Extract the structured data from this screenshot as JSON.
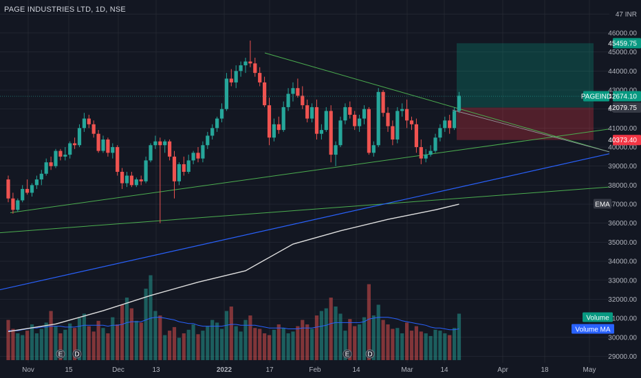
{
  "header": {
    "title": "PAGE INDUSTRIES LTD, 1D, NSE",
    "currency": "INR"
  },
  "colors": {
    "background": "#131722",
    "up": "#26a69a",
    "down": "#ef5350",
    "grid": "#2a2e39",
    "text": "#b2b5be",
    "ema": "#e0e0e0",
    "trend_blue": "#2962ff",
    "trend_green": "#4caf50"
  },
  "chart_data": {
    "type": "candlestick",
    "title": "PAGE INDUSTRIES LTD, 1D, NSE",
    "y_axis": {
      "unit": "INR",
      "ticks": [
        29000,
        30000,
        31000,
        32000,
        33000,
        34000,
        35000,
        36000,
        37000,
        38000,
        39000,
        40000,
        41000,
        42000,
        43000,
        44000,
        45000,
        46000,
        47000
      ],
      "ylim": [
        28800,
        47300
      ]
    },
    "x_axis": {
      "ticks": [
        "Nov",
        "15",
        "Dec",
        "13",
        "2022",
        "17",
        "Feb",
        "14",
        "Mar",
        "14",
        "Apr",
        "18",
        "May"
      ]
    },
    "series": [
      {
        "kind": "candles",
        "name": "PAGEIND",
        "ohlc": [
          [
            38300,
            38500,
            37100,
            37300
          ],
          [
            37300,
            37600,
            36500,
            36700
          ],
          [
            36700,
            37300,
            36600,
            37200
          ],
          [
            37200,
            38000,
            37100,
            37800
          ],
          [
            37800,
            38300,
            37500,
            37600
          ],
          [
            37600,
            38100,
            37400,
            38000
          ],
          [
            38000,
            38500,
            37800,
            38300
          ],
          [
            38300,
            38800,
            38000,
            38600
          ],
          [
            38600,
            39400,
            38500,
            39200
          ],
          [
            39200,
            39500,
            38800,
            39000
          ],
          [
            39000,
            39900,
            38900,
            39800
          ],
          [
            39800,
            39900,
            39300,
            39500
          ],
          [
            39500,
            40000,
            39300,
            39600
          ],
          [
            39600,
            40300,
            39400,
            40200
          ],
          [
            40200,
            40500,
            39900,
            40100
          ],
          [
            40100,
            41200,
            40000,
            41000
          ],
          [
            41000,
            41800,
            40800,
            41500
          ],
          [
            41500,
            41700,
            41000,
            41200
          ],
          [
            41200,
            41400,
            40500,
            40700
          ],
          [
            40700,
            40900,
            39700,
            39800
          ],
          [
            39800,
            40600,
            39700,
            40400
          ],
          [
            40400,
            40500,
            39500,
            39700
          ],
          [
            39700,
            40200,
            39400,
            40000
          ],
          [
            40000,
            40100,
            38500,
            38700
          ],
          [
            38700,
            38900,
            37800,
            38100
          ],
          [
            38100,
            38700,
            37900,
            38500
          ],
          [
            38500,
            38700,
            37900,
            38000
          ],
          [
            38000,
            38400,
            37900,
            38300
          ],
          [
            38300,
            38500,
            38000,
            38200
          ],
          [
            38200,
            39500,
            38100,
            39300
          ],
          [
            39300,
            40200,
            39200,
            40100
          ],
          [
            40100,
            40600,
            39900,
            40300
          ],
          [
            40300,
            40500,
            36000,
            40100
          ],
          [
            40100,
            40400,
            39700,
            40300
          ],
          [
            40300,
            40400,
            39300,
            39500
          ],
          [
            39500,
            39800,
            37300,
            38200
          ],
          [
            38200,
            39200,
            38000,
            39100
          ],
          [
            39100,
            39500,
            38500,
            38700
          ],
          [
            38700,
            39600,
            38600,
            39300
          ],
          [
            39300,
            39800,
            39100,
            39700
          ],
          [
            39700,
            40000,
            39200,
            39400
          ],
          [
            39400,
            40300,
            39200,
            40100
          ],
          [
            40100,
            40800,
            39900,
            40600
          ],
          [
            40600,
            41200,
            40400,
            41000
          ],
          [
            41000,
            41600,
            40800,
            41500
          ],
          [
            41500,
            42300,
            41300,
            42000
          ],
          [
            42000,
            43900,
            41900,
            43600
          ],
          [
            43600,
            44100,
            43200,
            43400
          ],
          [
            43400,
            44300,
            43100,
            44000
          ],
          [
            44000,
            44500,
            43700,
            44300
          ],
          [
            44300,
            44700,
            43900,
            44500
          ],
          [
            44500,
            45600,
            44200,
            44400
          ],
          [
            44400,
            44700,
            43700,
            43900
          ],
          [
            43900,
            44200,
            43200,
            43400
          ],
          [
            43400,
            43700,
            42100,
            42200
          ],
          [
            42200,
            42600,
            40100,
            40500
          ],
          [
            40500,
            41500,
            40300,
            41200
          ],
          [
            41200,
            41600,
            40700,
            40900
          ],
          [
            40900,
            42400,
            40800,
            42100
          ],
          [
            42100,
            43100,
            41900,
            42800
          ],
          [
            42800,
            43400,
            42400,
            43100
          ],
          [
            43100,
            43600,
            42600,
            42700
          ],
          [
            42700,
            43200,
            42000,
            42200
          ],
          [
            42200,
            42500,
            41300,
            41500
          ],
          [
            41500,
            42300,
            41300,
            42100
          ],
          [
            42100,
            42500,
            40400,
            40700
          ],
          [
            40700,
            41200,
            40400,
            40900
          ],
          [
            40900,
            42100,
            40800,
            41900
          ],
          [
            41900,
            42200,
            39200,
            39600
          ],
          [
            39600,
            40300,
            39000,
            40100
          ],
          [
            40100,
            41600,
            40000,
            41400
          ],
          [
            41400,
            42300,
            41200,
            42100
          ],
          [
            42100,
            42400,
            41500,
            41700
          ],
          [
            41700,
            41900,
            40900,
            41100
          ],
          [
            41100,
            41700,
            40800,
            41500
          ],
          [
            41500,
            42200,
            41200,
            42000
          ],
          [
            42000,
            42100,
            39600,
            39700
          ],
          [
            39700,
            40300,
            39500,
            40100
          ],
          [
            40100,
            43100,
            40000,
            42900
          ],
          [
            42900,
            43000,
            41600,
            41800
          ],
          [
            41800,
            42100,
            40800,
            41100
          ],
          [
            41100,
            41400,
            40100,
            40400
          ],
          [
            40400,
            42100,
            40200,
            41900
          ],
          [
            41900,
            42300,
            41600,
            42000
          ],
          [
            42000,
            42500,
            41000,
            41400
          ],
          [
            41400,
            41600,
            40900,
            41200
          ],
          [
            41200,
            41500,
            39700,
            40000
          ],
          [
            40000,
            40400,
            39100,
            39400
          ],
          [
            39400,
            39900,
            39200,
            39600
          ],
          [
            39600,
            40100,
            39500,
            39800
          ],
          [
            39800,
            40700,
            39700,
            40500
          ],
          [
            40500,
            41200,
            40300,
            41000
          ],
          [
            41000,
            41600,
            40800,
            41400
          ],
          [
            41400,
            41700,
            40700,
            41000
          ],
          [
            41000,
            42100,
            40900,
            41900
          ],
          [
            41900,
            42900,
            41800,
            42700
          ]
        ]
      },
      {
        "kind": "line",
        "name": "EMA",
        "points": [
          [
            0,
            30300
          ],
          [
            10,
            30700
          ],
          [
            20,
            31400
          ],
          [
            30,
            32200
          ],
          [
            40,
            32900
          ],
          [
            50,
            33500
          ],
          [
            55,
            34200
          ],
          [
            60,
            34900
          ],
          [
            70,
            35600
          ],
          [
            80,
            36200
          ],
          [
            90,
            36700
          ],
          [
            95,
            37000
          ]
        ]
      },
      {
        "kind": "bars",
        "name": "Volume"
      },
      {
        "kind": "line",
        "name": "Volume MA"
      }
    ],
    "price_tags": [
      {
        "value": "45459.75",
        "color": "#089981"
      },
      {
        "value": "42674.10",
        "color": "#089981",
        "label": "PAGEIND"
      },
      {
        "value": "42079.75",
        "color": "#363a45"
      },
      {
        "value": "40373.40",
        "color": "#f23645"
      }
    ],
    "legend": [
      {
        "label": "EMA",
        "color": "#363a45"
      },
      {
        "label": "Volume",
        "color": "#089981"
      },
      {
        "label": "Volume MA",
        "color": "#2962ff"
      }
    ],
    "volume_values": [
      0.45,
      0.35,
      0.3,
      0.28,
      0.33,
      0.4,
      0.3,
      0.35,
      0.42,
      0.55,
      0.38,
      0.3,
      0.34,
      0.41,
      0.36,
      0.47,
      0.52,
      0.38,
      0.32,
      0.44,
      0.36,
      0.3,
      0.48,
      0.4,
      0.62,
      0.7,
      0.58,
      0.44,
      0.42,
      0.8,
      0.95,
      0.55,
      0.5,
      0.28,
      0.33,
      0.37,
      0.25,
      0.3,
      0.34,
      0.4,
      0.29,
      0.33,
      0.38,
      0.45,
      0.42,
      0.35,
      0.55,
      0.6,
      0.38,
      0.32,
      0.45,
      0.5,
      0.36,
      0.35,
      0.3,
      0.28,
      0.34,
      0.4,
      0.36,
      0.3,
      0.32,
      0.38,
      0.45,
      0.4,
      0.35,
      0.5,
      0.55,
      0.58,
      0.7,
      0.6,
      0.52,
      0.33,
      0.46,
      0.38,
      0.4,
      0.48,
      0.85,
      0.5,
      0.62,
      0.45,
      0.4,
      0.35,
      0.36,
      0.3,
      0.42,
      0.33,
      0.38,
      0.32,
      0.3,
      0.27,
      0.34,
      0.33,
      0.3,
      0.28,
      0.36,
      0.52
    ],
    "volume_ma_values": [
      0.33,
      0.33,
      0.33,
      0.34,
      0.35,
      0.36,
      0.36,
      0.37,
      0.37,
      0.38,
      0.38,
      0.38,
      0.37,
      0.37,
      0.37,
      0.38,
      0.39,
      0.39,
      0.39,
      0.39,
      0.39,
      0.38,
      0.39,
      0.39,
      0.4,
      0.42,
      0.43,
      0.43,
      0.43,
      0.45,
      0.47,
      0.48,
      0.48,
      0.47,
      0.46,
      0.45,
      0.43,
      0.42,
      0.41,
      0.41,
      0.39,
      0.38,
      0.38,
      0.38,
      0.38,
      0.38,
      0.39,
      0.4,
      0.4,
      0.39,
      0.39,
      0.39,
      0.39,
      0.38,
      0.37,
      0.36,
      0.36,
      0.36,
      0.36,
      0.35,
      0.35,
      0.35,
      0.36,
      0.36,
      0.36,
      0.37,
      0.38,
      0.39,
      0.41,
      0.42,
      0.42,
      0.42,
      0.42,
      0.42,
      0.42,
      0.43,
      0.46,
      0.47,
      0.48,
      0.48,
      0.48,
      0.47,
      0.46,
      0.44,
      0.43,
      0.42,
      0.41,
      0.4,
      0.39,
      0.37,
      0.36,
      0.36,
      0.35,
      0.34,
      0.34,
      0.35
    ]
  }
}
